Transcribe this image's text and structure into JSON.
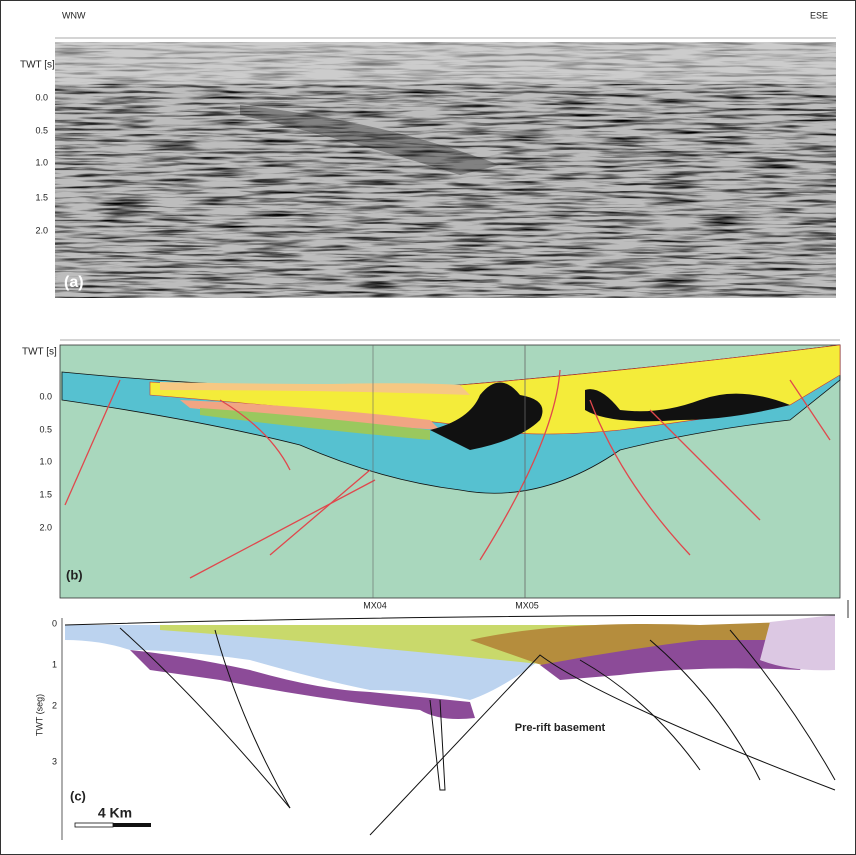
{
  "panels": {
    "a": {
      "label": "(a)",
      "left_label": "WNW",
      "right_label": "ESE",
      "axis_title": "TWT [s]",
      "axis_labels": [
        "0.0",
        "0.5",
        "1.0",
        "1.5",
        "2.0"
      ]
    },
    "b": {
      "label": "(b)",
      "axis_title": "TWT [s]",
      "axis_labels": [
        "0.0",
        "0.5",
        "1.0",
        "1.5",
        "2.0"
      ],
      "wells": [
        "MX04",
        "MX05"
      ]
    },
    "c": {
      "label": "(c)",
      "axis_title": "TWT (seg)",
      "axis_labels": [
        "0",
        "1",
        "2",
        "3"
      ],
      "annotation": "Pre-rift basement",
      "scale_label": "4 Km"
    }
  }
}
